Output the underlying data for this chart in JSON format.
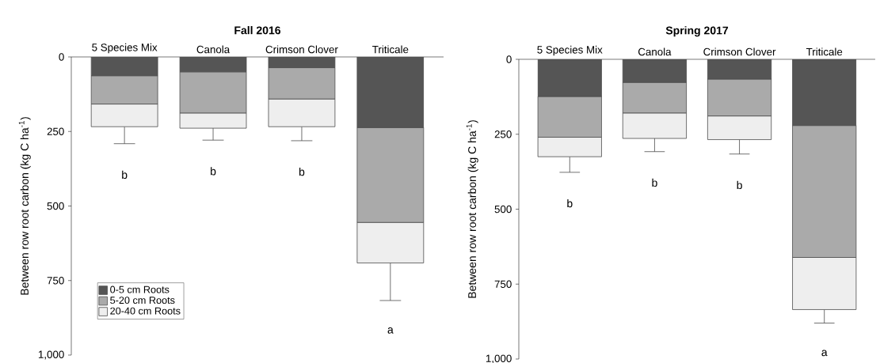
{
  "chart_data": [
    {
      "type": "bar",
      "stacked": true,
      "title": "Fall 2016",
      "ylabel": "Between row root carbon (kg C ha$^{-1}$)",
      "categories": [
        "5 Species Mix",
        "Canola",
        "Crimson Clover",
        "Triticale"
      ],
      "series": [
        {
          "name": "0-5 cm Roots",
          "color": "#555555",
          "values": [
            63,
            50,
            36,
            237
          ]
        },
        {
          "name": "5-20 cm Roots",
          "color": "#aaaaaa",
          "values": [
            95,
            138,
            105,
            318
          ]
        },
        {
          "name": "20-40 cm Roots",
          "color": "#eeeeee",
          "values": [
            76,
            51,
            93,
            136
          ],
          "errors": [
            [
              234,
              291
            ],
            [
              239,
              279
            ],
            [
              234,
              281
            ],
            [
              691,
              817
            ]
          ]
        }
      ],
      "ylim": [
        1000,
        0
      ],
      "yticks": [
        0,
        250,
        500,
        750,
        {
          "value": 1000,
          "label": "1,000"
        }
      ],
      "legend": "bottom left",
      "grid": false,
      "annotations": [
        "b",
        "b",
        "b",
        "a"
      ]
    },
    {
      "type": "bar",
      "stacked": true,
      "title": "Spring 2017",
      "ylabel": "Between row root carbon (kg C ha$^{-1}$)",
      "categories": [
        "5 Species Mix",
        "Canola",
        "Crimson Clover",
        "Triticale"
      ],
      "series": [
        {
          "color": "#555555",
          "values": [
            124,
            77,
            66,
            221
          ]
        },
        {
          "color": "#aaaaaa",
          "values": [
            136,
            102,
            123,
            440
          ]
        },
        {
          "color": "#eeeeee",
          "values": [
            65,
            85,
            79,
            174
          ],
          "errors": [
            [
              325,
              377
            ],
            [
              264,
              308
            ],
            [
              268,
              316
            ],
            [
              835,
              880
            ]
          ]
        }
      ],
      "ylim": [
        1000,
        0
      ],
      "yticks": [
        0,
        250,
        500,
        750,
        {
          "value": 1000,
          "label": "1,000"
        }
      ],
      "legend": false,
      "grid": false,
      "annotations": [
        "b",
        "b",
        "b",
        "a"
      ]
    }
  ]
}
